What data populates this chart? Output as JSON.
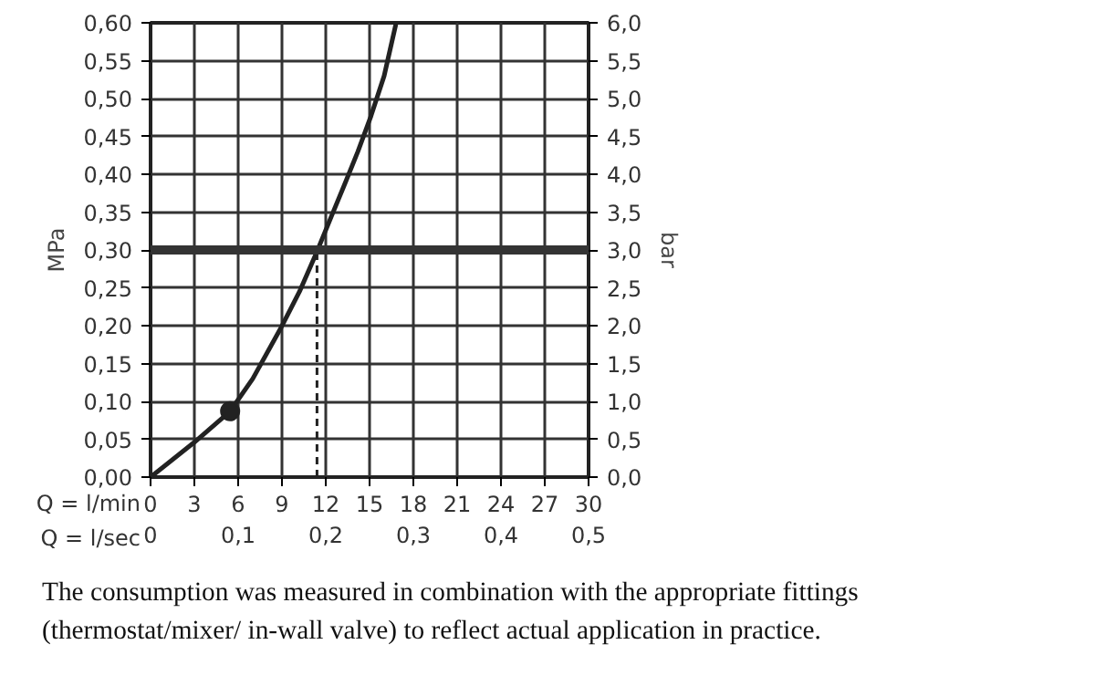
{
  "chart_data": {
    "type": "line",
    "xlabel": "Q = l/min",
    "x2label": "Q = l/sec",
    "ylabel": "MPa",
    "y2label": "bar",
    "xlim": [
      0,
      30
    ],
    "xticks": [
      0,
      3,
      6,
      9,
      12,
      15,
      18,
      21,
      24,
      27,
      30
    ],
    "x2lim": [
      0,
      0.5
    ],
    "x2ticks": [
      0,
      {
        "value": 0.1,
        "label": "0,1"
      },
      {
        "value": 0.2,
        "label": "0,2"
      },
      {
        "value": 0.3,
        "label": "0,3"
      },
      {
        "value": 0.4,
        "label": "0,4"
      },
      {
        "value": 0.5,
        "label": "0,5"
      }
    ],
    "ylim": [
      0,
      0.6
    ],
    "yticks": [
      {
        "value": 0,
        "label": "0,00"
      },
      {
        "value": 0.05,
        "label": "0,05"
      },
      {
        "value": 0.1,
        "label": "0,10"
      },
      {
        "value": 0.15,
        "label": "0,15"
      },
      {
        "value": 0.2,
        "label": "0,20"
      },
      {
        "value": 0.25,
        "label": "0,25"
      },
      {
        "value": 0.3,
        "label": "0,30"
      },
      {
        "value": 0.35,
        "label": "0,35"
      },
      {
        "value": 0.4,
        "label": "0,40"
      },
      {
        "value": 0.45,
        "label": "0,45"
      },
      {
        "value": 0.5,
        "label": "0,50"
      },
      {
        "value": 0.55,
        "label": "0,55"
      },
      {
        "value": 0.6,
        "label": "0,60"
      }
    ],
    "y2lim": [
      0,
      6
    ],
    "y2ticks": [
      {
        "value": 0,
        "label": "0,0"
      },
      {
        "value": 0.5,
        "label": "0,5"
      },
      {
        "value": 1,
        "label": "1,0"
      },
      {
        "value": 1.5,
        "label": "1,5"
      },
      {
        "value": 2,
        "label": "2,0"
      },
      {
        "value": 2.5,
        "label": "2,5"
      },
      {
        "value": 3,
        "label": "3,0"
      },
      {
        "value": 3.5,
        "label": "3,5"
      },
      {
        "value": 4,
        "label": "4,0"
      },
      {
        "value": 4.5,
        "label": "4,5"
      },
      {
        "value": 5,
        "label": "5,0"
      },
      {
        "value": 5.5,
        "label": "5,5"
      },
      {
        "value": 6,
        "label": "6,0"
      }
    ],
    "grid": true,
    "series": [
      {
        "type": "line",
        "color": "#222222",
        "line_style": "solid",
        "x": [
          0,
          3,
          5.45,
          7,
          8.9,
          10.2,
          11.4,
          12.4,
          13.3,
          14.2,
          15.1,
          16,
          16.8
        ],
        "values": [
          0,
          0.046,
          0.087,
          0.13,
          0.196,
          0.245,
          0.298,
          0.345,
          0.387,
          0.43,
          0.477,
          0.53,
          0.598
        ]
      },
      {
        "type": "scatter",
        "color": "#222222",
        "marker": "circle",
        "x": [
          5.45
        ],
        "values": [
          0.087
        ]
      },
      {
        "type": "line",
        "color": "#222222",
        "line_style": "dashed",
        "x": [
          11.4,
          11.4
        ],
        "values": [
          0,
          0.3
        ]
      }
    ],
    "ref_lines": [
      {
        "axis": "y",
        "value": 0.3,
        "color": "#333333"
      }
    ],
    "annotations": [
      "The consumption was measured in combination with the appropriate fittings (thermostat/mixer/ in-wall valve) to reflect actual application in practice."
    ]
  }
}
